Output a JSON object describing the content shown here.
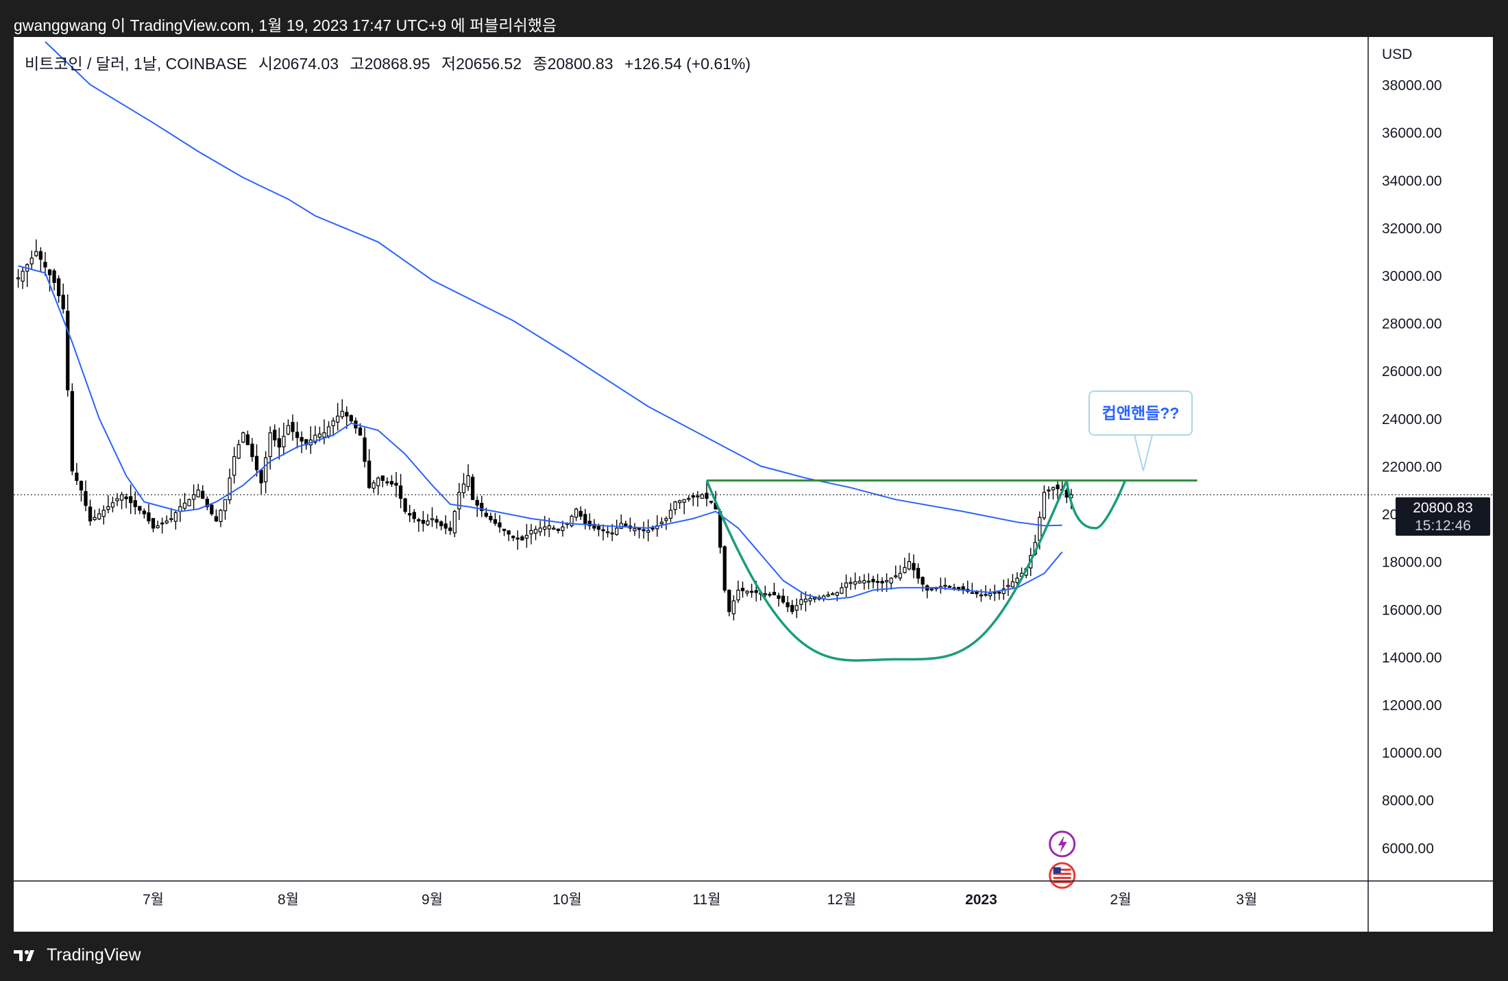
{
  "caption": "gwanggwang 이 TradingView.com, 1월 19, 2023 17:47 UTC+9 에 퍼블리쉬했음",
  "legend": {
    "symbol": "비트코인 / 달러, 1날, COINBASE",
    "open_label": "시",
    "open": "20674.03",
    "high_label": "고",
    "high": "20868.95",
    "low_label": "저",
    "low": "20656.52",
    "close_label": "종",
    "close": "20800.83",
    "change": "+126.54 (+0.61%)"
  },
  "price_tag": {
    "price": "20800.83",
    "countdown": "15:12:46"
  },
  "annotation": "컵앤핸들??",
  "footer": {
    "brand": "TradingView"
  },
  "colors": {
    "up": "#ffffff",
    "down": "#000000",
    "ma": "#2962ff",
    "resistance": "#2e8b3e",
    "cup": "#1a9c7a"
  },
  "chart_data": {
    "type": "candlestick",
    "y_axis_label": "USD",
    "y_ticks": [
      6000,
      8000,
      10000,
      12000,
      14000,
      16000,
      18000,
      20000,
      22000,
      24000,
      26000,
      28000,
      30000,
      32000,
      34000,
      36000,
      38000
    ],
    "y_tick_labels": [
      "6000.00",
      "8000.00",
      "10000.00",
      "12000.00",
      "14000.00",
      "16000.00",
      "18000.00",
      "20000.00",
      "22000.00",
      "24000.00",
      "26000.00",
      "28000.00",
      "30000.00",
      "32000.00",
      "34000.00",
      "36000.00",
      "38000.00"
    ],
    "ylim": [
      4600,
      40000
    ],
    "x_tick_labels": [
      "7월",
      "8월",
      "9월",
      "10월",
      "11월",
      "12월",
      "2023",
      "2월",
      "3월"
    ],
    "x_tick_days": [
      30,
      60,
      92,
      122,
      153,
      183,
      214,
      245,
      273
    ],
    "xlim": [
      -1,
      300
    ],
    "last_price": 20800.83,
    "resistance": {
      "price": 21400,
      "from_day": 153,
      "to_day": 262
    },
    "cup": {
      "start_day": 153,
      "start_price": 21400,
      "bottom_day": 195,
      "bottom_price": 13900,
      "end_day": 233,
      "end_price": 21400
    },
    "handle": {
      "start_day": 233,
      "end_day": 246,
      "bottom_price": 19400
    },
    "candle_keypoints": [
      [
        0,
        29900
      ],
      [
        4,
        31000
      ],
      [
        8,
        29700
      ],
      [
        10,
        28600
      ],
      [
        12,
        21800
      ],
      [
        14,
        21000
      ],
      [
        16,
        19700
      ],
      [
        20,
        20300
      ],
      [
        23,
        20800
      ],
      [
        26,
        20300
      ],
      [
        28,
        20000
      ],
      [
        30,
        19400
      ],
      [
        34,
        19800
      ],
      [
        36,
        20300
      ],
      [
        38,
        20600
      ],
      [
        40,
        21000
      ],
      [
        42,
        20300
      ],
      [
        44,
        19700
      ],
      [
        46,
        20600
      ],
      [
        48,
        22400
      ],
      [
        50,
        23400
      ],
      [
        52,
        22400
      ],
      [
        54,
        21300
      ],
      [
        56,
        23400
      ],
      [
        58,
        22800
      ],
      [
        60,
        23700
      ],
      [
        62,
        23200
      ],
      [
        64,
        22900
      ],
      [
        66,
        23300
      ],
      [
        68,
        23400
      ],
      [
        70,
        23900
      ],
      [
        72,
        24300
      ],
      [
        74,
        23900
      ],
      [
        76,
        23300
      ],
      [
        78,
        21100
      ],
      [
        80,
        21500
      ],
      [
        82,
        21300
      ],
      [
        84,
        21200
      ],
      [
        86,
        20100
      ],
      [
        88,
        19800
      ],
      [
        90,
        19600
      ],
      [
        92,
        19800
      ],
      [
        94,
        19500
      ],
      [
        96,
        19300
      ],
      [
        98,
        20900
      ],
      [
        100,
        21600
      ],
      [
        101,
        20600
      ],
      [
        104,
        19900
      ],
      [
        108,
        19300
      ],
      [
        110,
        19000
      ],
      [
        112,
        18900
      ],
      [
        114,
        19300
      ],
      [
        116,
        19400
      ],
      [
        118,
        19500
      ],
      [
        120,
        19300
      ],
      [
        122,
        19600
      ],
      [
        124,
        20200
      ],
      [
        126,
        19600
      ],
      [
        128,
        19400
      ],
      [
        132,
        19200
      ],
      [
        134,
        19600
      ],
      [
        136,
        19400
      ],
      [
        140,
        19300
      ],
      [
        142,
        19500
      ],
      [
        144,
        19800
      ],
      [
        146,
        20500
      ],
      [
        150,
        20700
      ],
      [
        152,
        20800
      ],
      [
        154,
        20500
      ],
      [
        155,
        20200
      ],
      [
        156,
        18600
      ],
      [
        157,
        16800
      ],
      [
        158,
        15900
      ],
      [
        160,
        16800
      ],
      [
        164,
        16700
      ],
      [
        168,
        16600
      ],
      [
        170,
        16300
      ],
      [
        172,
        15900
      ],
      [
        174,
        16400
      ],
      [
        178,
        16500
      ],
      [
        182,
        16700
      ],
      [
        184,
        17100
      ],
      [
        188,
        17200
      ],
      [
        192,
        17100
      ],
      [
        194,
        17300
      ],
      [
        196,
        17500
      ],
      [
        198,
        18000
      ],
      [
        200,
        17300
      ],
      [
        202,
        16800
      ],
      [
        206,
        17000
      ],
      [
        210,
        16800
      ],
      [
        214,
        16600
      ],
      [
        218,
        16700
      ],
      [
        220,
        17000
      ],
      [
        222,
        17300
      ],
      [
        224,
        17700
      ],
      [
        226,
        18800
      ],
      [
        228,
        20900
      ],
      [
        230,
        21100
      ],
      [
        232,
        21000
      ],
      [
        233,
        20700
      ],
      [
        234,
        20800
      ]
    ],
    "ma_long_keypoints": [
      [
        6,
        39800
      ],
      [
        16,
        38000
      ],
      [
        30,
        36400
      ],
      [
        40,
        35200
      ],
      [
        50,
        34100
      ],
      [
        60,
        33200
      ],
      [
        66,
        32500
      ],
      [
        80,
        31400
      ],
      [
        92,
        29800
      ],
      [
        110,
        28100
      ],
      [
        122,
        26700
      ],
      [
        140,
        24500
      ],
      [
        155,
        23000
      ],
      [
        165,
        22000
      ],
      [
        175,
        21500
      ],
      [
        185,
        21100
      ],
      [
        195,
        20600
      ],
      [
        210,
        20100
      ],
      [
        222,
        19650
      ],
      [
        228,
        19500
      ],
      [
        232,
        19520
      ]
    ],
    "ma_short_keypoints": [
      [
        0,
        30400
      ],
      [
        6,
        30100
      ],
      [
        12,
        27200
      ],
      [
        18,
        24000
      ],
      [
        24,
        21600
      ],
      [
        28,
        20500
      ],
      [
        32,
        20300
      ],
      [
        36,
        20100
      ],
      [
        40,
        20200
      ],
      [
        44,
        20500
      ],
      [
        50,
        21200
      ],
      [
        56,
        22200
      ],
      [
        62,
        22800
      ],
      [
        70,
        23300
      ],
      [
        74,
        23800
      ],
      [
        80,
        23500
      ],
      [
        86,
        22500
      ],
      [
        92,
        21200
      ],
      [
        96,
        20400
      ],
      [
        100,
        20300
      ],
      [
        106,
        20100
      ],
      [
        114,
        19800
      ],
      [
        122,
        19600
      ],
      [
        130,
        19500
      ],
      [
        140,
        19400
      ],
      [
        150,
        19800
      ],
      [
        155,
        20100
      ],
      [
        160,
        19400
      ],
      [
        165,
        18300
      ],
      [
        170,
        17200
      ],
      [
        175,
        16600
      ],
      [
        180,
        16400
      ],
      [
        185,
        16500
      ],
      [
        190,
        16800
      ],
      [
        196,
        16900
      ],
      [
        204,
        16900
      ],
      [
        210,
        16800
      ],
      [
        216,
        16700
      ],
      [
        222,
        16900
      ],
      [
        228,
        17500
      ],
      [
        232,
        18400
      ]
    ]
  }
}
